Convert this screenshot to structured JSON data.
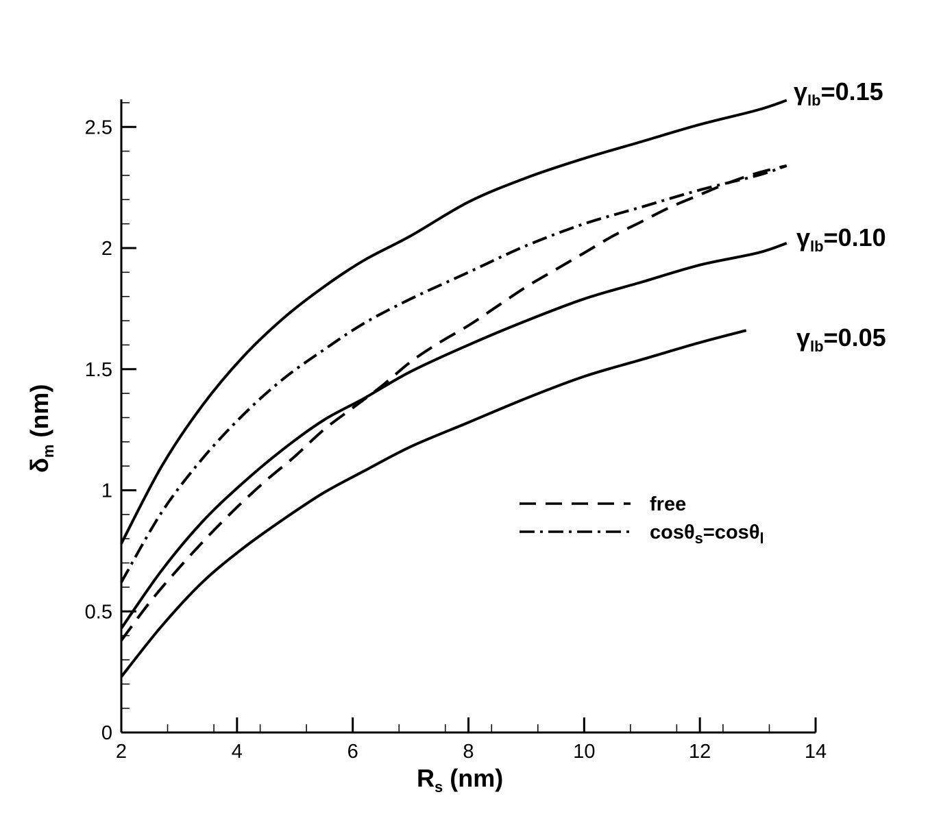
{
  "chart_data": {
    "type": "line",
    "xlabel": {
      "main": "R",
      "sub": "s",
      "unit": " (nm)"
    },
    "ylabel": {
      "main": "δ",
      "sub": "m",
      "unit": " (nm)"
    },
    "xlim": [
      2,
      14
    ],
    "ylim": [
      0,
      2.62
    ],
    "x_ticks": [
      2,
      4,
      6,
      8,
      10,
      12,
      14
    ],
    "y_ticks": [
      0,
      0.5,
      1,
      1.5,
      2,
      2.5
    ],
    "y_tick_labels": [
      "0",
      "0.5",
      "1",
      "1.5",
      "2",
      "2.5"
    ],
    "x_minor_step": 0.8,
    "y_minor_step": 0.1,
    "grid": false,
    "legend_position": "center-right",
    "series": [
      {
        "id": "gamma-015",
        "style": "solid",
        "label": {
          "main": "γ",
          "sub": "lb",
          "value": "=0.15"
        },
        "x": [
          2,
          2.7,
          3.4,
          4.1,
          4.8,
          5.5,
          6.2,
          7.0,
          8.0,
          9.0,
          10.0,
          11.0,
          12.0,
          13.0,
          13.5
        ],
        "y": [
          0.78,
          1.1,
          1.35,
          1.55,
          1.71,
          1.84,
          1.95,
          2.05,
          2.19,
          2.29,
          2.37,
          2.44,
          2.51,
          2.57,
          2.61
        ]
      },
      {
        "id": "gamma-010",
        "style": "solid",
        "label": {
          "main": "γ",
          "sub": "lb",
          "value": "=0.10"
        },
        "x": [
          2,
          2.7,
          3.4,
          4.1,
          4.8,
          5.5,
          6.2,
          7.0,
          8.0,
          9.0,
          10.0,
          11.0,
          12.0,
          13.0,
          13.5
        ],
        "y": [
          0.43,
          0.67,
          0.87,
          1.03,
          1.17,
          1.29,
          1.38,
          1.49,
          1.6,
          1.7,
          1.79,
          1.86,
          1.93,
          1.98,
          2.02
        ]
      },
      {
        "id": "gamma-005",
        "style": "solid",
        "label": {
          "main": "γ",
          "sub": "lb",
          "value": "=0.05"
        },
        "x": [
          2,
          2.7,
          3.4,
          4.1,
          4.8,
          5.5,
          6.2,
          7.0,
          8.0,
          9.0,
          10.0,
          11.0,
          12.0,
          12.8
        ],
        "y": [
          0.23,
          0.44,
          0.62,
          0.76,
          0.88,
          0.99,
          1.08,
          1.18,
          1.28,
          1.38,
          1.47,
          1.54,
          1.61,
          1.66
        ]
      },
      {
        "id": "free",
        "style": "dashed",
        "name": "free",
        "x": [
          2,
          2.5,
          3,
          3.5,
          4,
          4.5,
          5,
          5.5,
          6,
          6.5,
          7,
          7.5,
          8,
          8.5,
          9,
          9.5,
          10,
          10.5,
          11,
          11.5,
          12,
          12.5,
          13,
          13.5
        ],
        "y": [
          0.38,
          0.54,
          0.68,
          0.81,
          0.93,
          1.04,
          1.14,
          1.25,
          1.34,
          1.43,
          1.53,
          1.61,
          1.68,
          1.76,
          1.84,
          1.91,
          1.98,
          2.05,
          2.11,
          2.17,
          2.22,
          2.27,
          2.31,
          2.34
        ]
      },
      {
        "id": "cos",
        "style": "dashdot",
        "name": {
          "main": "cosθ",
          "sub1": "s",
          "mid": "=cosθ",
          "sub2": "l"
        },
        "x": [
          2,
          2.7,
          3.4,
          4.1,
          4.8,
          5.5,
          6.2,
          7.0,
          8.0,
          9.0,
          10.0,
          11.0,
          12.0,
          13.0,
          13.5
        ],
        "y": [
          0.62,
          0.91,
          1.13,
          1.31,
          1.46,
          1.58,
          1.69,
          1.79,
          1.9,
          2.01,
          2.1,
          2.17,
          2.24,
          2.3,
          2.34
        ]
      }
    ]
  }
}
